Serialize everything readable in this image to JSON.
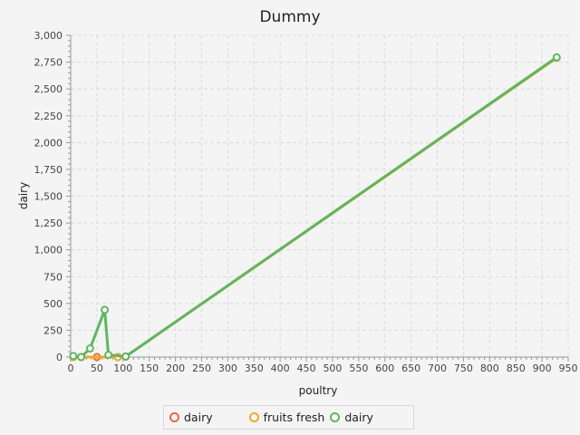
{
  "chart_data": {
    "type": "line",
    "title": "Dummy",
    "xlabel": "poultry",
    "ylabel": "dairy",
    "xlim": [
      0,
      950
    ],
    "ylim": [
      0,
      3000
    ],
    "x_ticks": [
      0,
      50,
      100,
      150,
      200,
      250,
      300,
      350,
      400,
      450,
      500,
      550,
      600,
      650,
      700,
      750,
      800,
      850,
      900,
      950
    ],
    "y_ticks": [
      0,
      250,
      500,
      750,
      1000,
      1250,
      1500,
      1750,
      2000,
      2250,
      2500,
      2750,
      3000
    ],
    "x_tick_labels": [
      "0",
      "50",
      "100",
      "150",
      "200",
      "250",
      "300",
      "350",
      "400",
      "450",
      "500",
      "550",
      "600",
      "650",
      "700",
      "750",
      "800",
      "850",
      "900",
      "950"
    ],
    "y_tick_labels": [
      "0",
      "250",
      "500",
      "750",
      "1,000",
      "1,250",
      "1,500",
      "1,750",
      "2,000",
      "2,250",
      "2,500",
      "2,750",
      "3,000"
    ],
    "grid": true,
    "legend_position": "bottom",
    "series": [
      {
        "name": "dairy",
        "color": "#f0643c",
        "points": [
          [
            5,
            0
          ],
          [
            20,
            0
          ],
          [
            50,
            0
          ],
          [
            90,
            0
          ]
        ]
      },
      {
        "name": "fruits fresh",
        "color": "#f5a623",
        "points": [
          [
            5,
            0
          ],
          [
            20,
            0
          ],
          [
            90,
            0
          ],
          [
            105,
            5
          ],
          [
            928,
            2790
          ]
        ]
      },
      {
        "name": "dairy",
        "color": "#5cb85c",
        "points": [
          [
            5,
            10
          ],
          [
            20,
            0
          ],
          [
            37,
            80
          ],
          [
            65,
            440
          ],
          [
            72,
            20
          ],
          [
            105,
            5
          ],
          [
            928,
            2795
          ]
        ]
      }
    ]
  }
}
